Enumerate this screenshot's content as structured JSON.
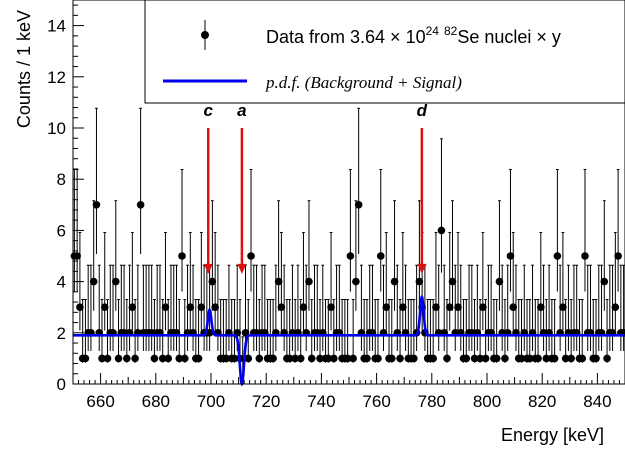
{
  "chart_data": {
    "type": "scatter",
    "xlabel": "Energy [keV]",
    "ylabel": "Counts / 1 keV",
    "xlim": [
      650,
      850
    ],
    "ylim": [
      0,
      15
    ],
    "x_ticks": [
      "660",
      "680",
      "700",
      "720",
      "740",
      "760",
      "780",
      "800",
      "820",
      "840"
    ],
    "y_ticks": [
      "0",
      "2",
      "4",
      "6",
      "8",
      "10",
      "12",
      "14"
    ],
    "legend": {
      "placement": "top-right",
      "data_label_parts": [
        "Data from 3.64 × 10",
        "24",
        " ",
        "82",
        "Se nuclei × y"
      ],
      "pdf_label": "p.d.f. (Background + Signal)"
    },
    "series": [
      {
        "name": "Data from 3.64 × 10^24 82Se nuclei × y",
        "style": "points-with-error-bars",
        "x": [
          650.5,
          651.5,
          652.5,
          653.5,
          654.5,
          655.5,
          656.5,
          657.5,
          658.5,
          659.5,
          660.5,
          661.5,
          662.5,
          663.5,
          664.5,
          665.5,
          666.5,
          667.5,
          668.5,
          669.5,
          670.5,
          671.5,
          672.5,
          673.5,
          674.5,
          675.5,
          676.5,
          677.5,
          678.5,
          679.5,
          680.5,
          681.5,
          682.5,
          683.5,
          684.5,
          685.5,
          686.5,
          687.5,
          688.5,
          689.5,
          690.5,
          691.5,
          692.5,
          693.5,
          694.5,
          695.5,
          696.5,
          697.5,
          698.5,
          699.5,
          700.5,
          701.5,
          702.5,
          703.5,
          704.5,
          705.5,
          706.5,
          707.5,
          708.5,
          709.5,
          710.5,
          711.5,
          712.5,
          713.5,
          714.5,
          715.5,
          716.5,
          717.5,
          718.5,
          719.5,
          720.5,
          721.5,
          722.5,
          723.5,
          724.5,
          725.5,
          726.5,
          727.5,
          728.5,
          729.5,
          730.5,
          731.5,
          732.5,
          733.5,
          734.5,
          735.5,
          736.5,
          737.5,
          738.5,
          739.5,
          740.5,
          741.5,
          742.5,
          743.5,
          744.5,
          745.5,
          746.5,
          747.5,
          748.5,
          749.5,
          750.5,
          751.5,
          752.5,
          753.5,
          754.5,
          755.5,
          756.5,
          757.5,
          758.5,
          759.5,
          760.5,
          761.5,
          762.5,
          763.5,
          764.5,
          765.5,
          766.5,
          767.5,
          768.5,
          769.5,
          770.5,
          771.5,
          772.5,
          773.5,
          774.5,
          775.5,
          776.5,
          777.5,
          778.5,
          779.5,
          780.5,
          781.5,
          782.5,
          783.5,
          784.5,
          785.5,
          786.5,
          787.5,
          788.5,
          789.5,
          790.5,
          791.5,
          792.5,
          793.5,
          794.5,
          795.5,
          796.5,
          797.5,
          798.5,
          799.5,
          800.5,
          801.5,
          802.5,
          803.5,
          804.5,
          805.5,
          806.5,
          807.5,
          808.5,
          809.5,
          810.5,
          811.5,
          812.5,
          813.5,
          814.5,
          815.5,
          816.5,
          817.5,
          818.5,
          819.5,
          820.5,
          821.5,
          822.5,
          823.5,
          824.5,
          825.5,
          826.5,
          827.5,
          828.5,
          829.5,
          830.5,
          831.5,
          832.5,
          833.5,
          834.5,
          835.5,
          836.5,
          837.5,
          838.5,
          839.5,
          840.5,
          841.5,
          842.5,
          843.5,
          844.5,
          845.5,
          846.5,
          847.5,
          848.5,
          849.5
        ],
        "y": [
          5,
          5,
          3,
          1,
          1,
          2,
          2,
          4,
          7,
          2,
          1,
          3,
          1,
          2,
          2,
          4,
          1,
          2,
          2,
          1,
          2,
          3,
          1,
          2,
          7,
          2,
          2,
          2,
          2,
          1,
          2,
          2,
          1,
          3,
          1,
          2,
          2,
          2,
          1,
          5,
          1,
          2,
          3,
          2,
          1,
          1,
          3,
          2,
          2,
          2,
          4,
          3,
          2,
          1,
          1,
          1,
          2,
          1,
          1,
          2,
          1,
          0,
          2,
          1,
          5,
          2,
          2,
          1,
          2,
          2,
          1,
          1,
          1,
          2,
          4,
          3,
          2,
          1,
          1,
          2,
          1,
          2,
          1,
          3,
          2,
          4,
          1,
          2,
          2,
          1,
          2,
          1,
          1,
          3,
          1,
          2,
          2,
          1,
          1,
          1,
          5,
          1,
          4,
          7,
          2,
          1,
          1,
          2,
          2,
          1,
          1,
          5,
          2,
          3,
          1,
          1,
          4,
          2,
          1,
          3,
          2,
          1,
          1,
          1,
          2,
          4,
          3,
          2,
          1,
          1,
          1,
          3,
          2,
          6,
          2,
          1,
          3,
          4,
          2,
          3,
          2,
          1,
          1,
          2,
          2,
          1,
          2,
          1,
          3,
          1,
          2,
          2,
          1,
          1,
          4,
          2,
          1,
          2,
          5,
          3,
          2,
          1,
          1,
          2,
          1,
          1,
          2,
          1,
          1,
          3,
          2,
          1,
          2,
          1,
          1,
          5,
          2,
          3,
          1,
          2,
          1,
          2,
          2,
          1,
          1,
          5,
          2,
          2,
          1,
          1,
          2,
          2,
          4,
          1,
          2,
          2,
          3,
          5,
          2,
          2
        ]
      },
      {
        "name": "p.d.f. (Background + Signal)",
        "style": "line",
        "color": "#0000ee",
        "baseline": 1.9,
        "peaks": [
          {
            "center": 699.5,
            "amplitude": 1.0,
            "width": 0.65
          },
          {
            "center": 711.2,
            "amplitude": -1.9,
            "width": 0.75
          },
          {
            "center": 776.4,
            "amplitude": 1.5,
            "width": 0.65
          }
        ]
      }
    ],
    "annotations": [
      {
        "label": "c",
        "x": 699.0,
        "y_from": 10.0,
        "y_to": 4.3,
        "color": "#dd1111"
      },
      {
        "label": "a",
        "x": 711.2,
        "y_from": 10.0,
        "y_to": 4.3,
        "color": "#dd1111"
      },
      {
        "label": "d",
        "x": 776.4,
        "y_from": 10.0,
        "y_to": 4.3,
        "color": "#dd1111"
      }
    ],
    "grid": false
  }
}
